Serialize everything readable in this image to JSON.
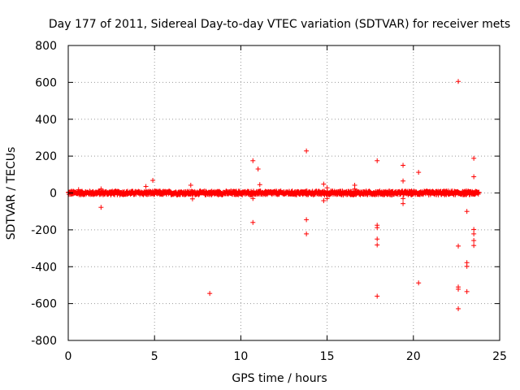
{
  "chart_data": {
    "type": "scatter",
    "title": "Day 177 of 2011, Sidereal Day-to-day VTEC variation (SDTVAR) for receiver mets",
    "xlabel": "GPS time / hours",
    "ylabel": "SDTVAR / TECUs",
    "xlim": [
      0,
      25
    ],
    "ylim": [
      -800,
      800
    ],
    "xticks": [
      0,
      5,
      10,
      15,
      20,
      25
    ],
    "yticks": [
      -800,
      -600,
      -400,
      -200,
      0,
      200,
      400,
      600,
      800
    ],
    "grid": true,
    "marker": "+",
    "color": "#ff0000",
    "series": [
      {
        "name": "SDTVAR",
        "dense_band": {
          "x_range": [
            0,
            23.8
          ],
          "y_range": [
            -12,
            12
          ],
          "note": "continuous dense band of points near zero"
        },
        "outliers": [
          [
            0.6,
            18
          ],
          [
            1.9,
            22
          ],
          [
            1.9,
            -78
          ],
          [
            4.5,
            35
          ],
          [
            4.9,
            68
          ],
          [
            7.1,
            42
          ],
          [
            7.2,
            -32
          ],
          [
            8.2,
            -545
          ],
          [
            10.7,
            175
          ],
          [
            10.7,
            -160
          ],
          [
            10.7,
            -30
          ],
          [
            11.0,
            130
          ],
          [
            11.1,
            45
          ],
          [
            13.8,
            228
          ],
          [
            13.8,
            -145
          ],
          [
            13.8,
            -222
          ],
          [
            14.8,
            48
          ],
          [
            14.8,
            -42
          ],
          [
            15.0,
            -30
          ],
          [
            15.0,
            28
          ],
          [
            16.6,
            42
          ],
          [
            16.6,
            22
          ],
          [
            17.9,
            175
          ],
          [
            17.9,
            -175
          ],
          [
            17.9,
            -188
          ],
          [
            17.9,
            -250
          ],
          [
            17.9,
            -282
          ],
          [
            17.9,
            -560
          ],
          [
            19.4,
            150
          ],
          [
            19.4,
            65
          ],
          [
            19.4,
            -58
          ],
          [
            19.4,
            -30
          ],
          [
            20.3,
            112
          ],
          [
            20.3,
            -488
          ],
          [
            22.6,
            605
          ],
          [
            22.6,
            -288
          ],
          [
            22.6,
            -510
          ],
          [
            22.6,
            -522
          ],
          [
            22.6,
            -628
          ],
          [
            23.1,
            -100
          ],
          [
            23.1,
            -378
          ],
          [
            23.1,
            -398
          ],
          [
            23.1,
            -535
          ],
          [
            23.5,
            188
          ],
          [
            23.5,
            88
          ],
          [
            23.5,
            -198
          ],
          [
            23.5,
            -222
          ],
          [
            23.5,
            -258
          ],
          [
            23.5,
            -285
          ]
        ]
      }
    ]
  }
}
